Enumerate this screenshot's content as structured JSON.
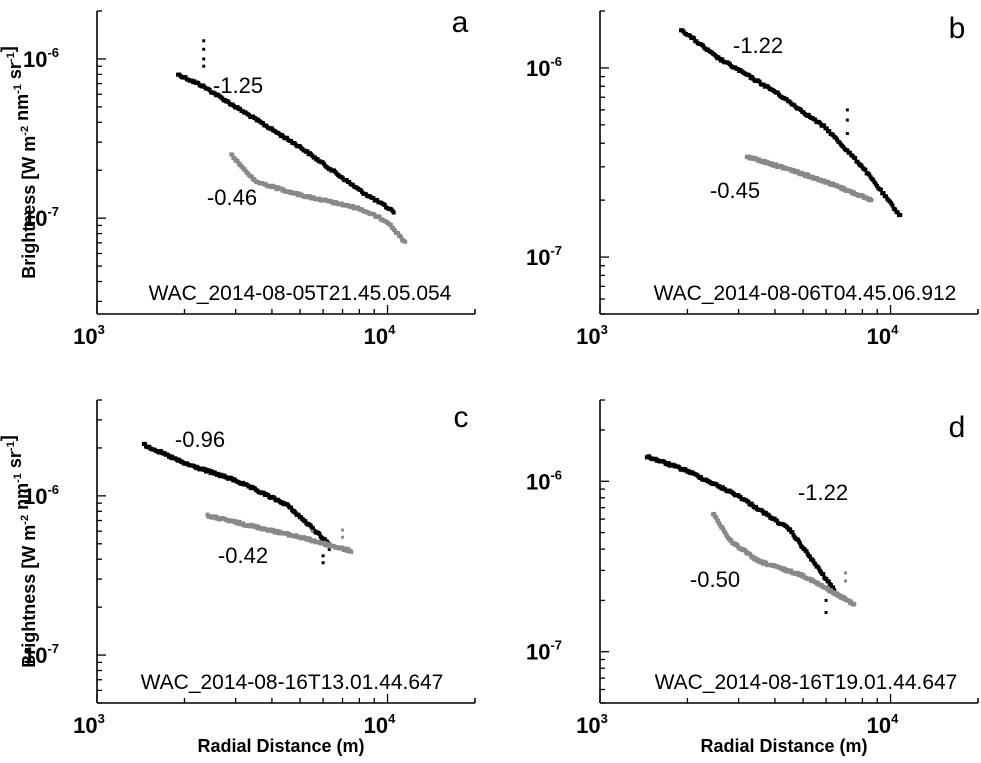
{
  "chart_data": [
    {
      "type": "scatter",
      "panel": "a",
      "caption": "WAC_2014-08-05T21.45.05.054",
      "xlabel": "",
      "ylabel": "Brightness [W m-2 nm-1 sr-1]",
      "xscale": "log",
      "yscale": "log",
      "xlim": [
        1000,
        20000
      ],
      "ylim": [
        2.5e-08,
        2e-06
      ],
      "xticks": [
        {
          "base": "10",
          "exp": "3"
        },
        {
          "base": "10",
          "exp": "4"
        }
      ],
      "yticks": [
        {
          "value": 1e-07,
          "base": "10",
          "exp": "-7"
        },
        {
          "value": 1e-06,
          "base": "10",
          "exp": "-6"
        }
      ],
      "series": [
        {
          "color": "#000000",
          "slope_label": "-1.25",
          "x_range": [
            1900,
            10500
          ],
          "points": [
            [
              1900,
              8e-07
            ],
            [
              2300,
              6.8e-07
            ],
            [
              3000,
              5e-07
            ],
            [
              5000,
              2.8e-07
            ],
            [
              8000,
              1.5e-07
            ],
            [
              10500,
              1.1e-07
            ]
          ],
          "outliers": [
            [
              2330,
              1.3e-06
            ],
            [
              2330,
              1.15e-06
            ],
            [
              2330,
              1e-06
            ],
            [
              2330,
              9e-07
            ]
          ]
        },
        {
          "color": "#888888",
          "slope_label": "-0.46",
          "x_range": [
            2900,
            11500
          ],
          "points": [
            [
              2900,
              2.5e-07
            ],
            [
              3500,
              1.7e-07
            ],
            [
              5000,
              1.4e-07
            ],
            [
              8000,
              1.15e-07
            ],
            [
              10000,
              9.5e-08
            ],
            [
              11500,
              7e-08
            ]
          ],
          "outliers": []
        }
      ]
    },
    {
      "type": "scatter",
      "panel": "b",
      "caption": "WAC_2014-08-06T04.45.06.912",
      "xlabel": "",
      "ylabel": "",
      "xscale": "log",
      "yscale": "log",
      "xlim": [
        1000,
        20000
      ],
      "ylim": [
        5e-08,
        2e-06
      ],
      "xticks": [
        {
          "base": "10",
          "exp": "3"
        },
        {
          "base": "10",
          "exp": "4"
        }
      ],
      "yticks": [
        {
          "value": 1e-07,
          "base": "10",
          "exp": "-7"
        },
        {
          "value": 1e-06,
          "base": "10",
          "exp": "-6"
        }
      ],
      "series": [
        {
          "color": "#000000",
          "slope_label": "-1.22",
          "x_range": [
            1900,
            10800
          ],
          "points": [
            [
              1900,
              1.6e-06
            ],
            [
              2500,
              1.15e-06
            ],
            [
              4000,
              7.5e-07
            ],
            [
              6000,
              4.8e-07
            ],
            [
              8000,
              3e-07
            ],
            [
              10800,
              1.65e-07
            ]
          ],
          "outliers": [
            [
              7100,
              6e-07
            ],
            [
              7100,
              5.3e-07
            ],
            [
              7100,
              4.5e-07
            ],
            [
              7900,
              3.1e-07
            ]
          ]
        },
        {
          "color": "#888888",
          "slope_label": "-0.45",
          "x_range": [
            3200,
            8600
          ],
          "points": [
            [
              3200,
              3.4e-07
            ],
            [
              4500,
              2.9e-07
            ],
            [
              6000,
              2.5e-07
            ],
            [
              8600,
              2e-07
            ]
          ],
          "outliers": []
        }
      ]
    },
    {
      "type": "scatter",
      "panel": "c",
      "caption": "WAC_2014-08-16T13.01.44.647",
      "xlabel": "Radial Distance (m)",
      "ylabel": "Brightness [W m-2 nm-1 sr-1]",
      "xscale": "log",
      "yscale": "log",
      "xlim": [
        1000,
        20000
      ],
      "ylim": [
        5e-08,
        4e-06
      ],
      "xticks": [
        {
          "base": "10",
          "exp": "3"
        },
        {
          "base": "10",
          "exp": "4"
        }
      ],
      "yticks": [
        {
          "value": 1e-07,
          "base": "10",
          "exp": "-7"
        },
        {
          "value": 1e-06,
          "base": "10",
          "exp": "-6"
        }
      ],
      "series": [
        {
          "color": "#000000",
          "slope_label": "-0.96",
          "x_range": [
            1450,
            6300
          ],
          "points": [
            [
              1450,
              2.1e-06
            ],
            [
              2000,
              1.6e-06
            ],
            [
              3000,
              1.25e-06
            ],
            [
              4500,
              8.8e-07
            ],
            [
              6300,
              5e-07
            ]
          ],
          "outliers": [
            [
              6000,
              4.2e-07
            ],
            [
              6000,
              3.8e-07
            ],
            [
              6300,
              4.6e-07
            ]
          ]
        },
        {
          "color": "#888888",
          "slope_label": "-0.42",
          "x_range": [
            2400,
            7500
          ],
          "points": [
            [
              2400,
              7.5e-07
            ],
            [
              3500,
              6.4e-07
            ],
            [
              5000,
              5.5e-07
            ],
            [
              7500,
              4.5e-07
            ]
          ],
          "outliers": [
            [
              7000,
              6.1e-07
            ],
            [
              7000,
              5.5e-07
            ],
            [
              5500,
              6e-07
            ]
          ]
        }
      ]
    },
    {
      "type": "scatter",
      "panel": "d",
      "caption": "WAC_2014-08-16T19.01.44.647",
      "xlabel": "Radial Distance (m)",
      "ylabel": "",
      "xscale": "log",
      "yscale": "log",
      "xlim": [
        1000,
        20000
      ],
      "ylim": [
        5e-08,
        3e-06
      ],
      "xticks": [
        {
          "base": "10",
          "exp": "3"
        },
        {
          "base": "10",
          "exp": "4"
        }
      ],
      "yticks": [
        {
          "value": 1e-07,
          "base": "10",
          "exp": "-7"
        },
        {
          "value": 1e-06,
          "base": "10",
          "exp": "-6"
        }
      ],
      "series": [
        {
          "color": "#000000",
          "slope_label": "-1.22",
          "x_range": [
            1450,
            6400
          ],
          "points": [
            [
              1450,
              1.4e-06
            ],
            [
              2000,
              1.15e-06
            ],
            [
              3000,
              8.2e-07
            ],
            [
              4500,
              5.2e-07
            ],
            [
              6400,
              2.3e-07
            ]
          ],
          "outliers": [
            [
              6000,
              1.7e-07
            ],
            [
              6000,
              2e-07
            ]
          ]
        },
        {
          "color": "#888888",
          "slope_label": "-0.50",
          "x_range": [
            2450,
            7500
          ],
          "points": [
            [
              2450,
              6.5e-07
            ],
            [
              2800,
              4.5e-07
            ],
            [
              3500,
              3.4e-07
            ],
            [
              5000,
              2.8e-07
            ],
            [
              7500,
              1.9e-07
            ]
          ],
          "outliers": [
            [
              7000,
              2.9e-07
            ],
            [
              7000,
              2.6e-07
            ],
            [
              4200,
              3.1e-07
            ]
          ]
        }
      ]
    }
  ]
}
